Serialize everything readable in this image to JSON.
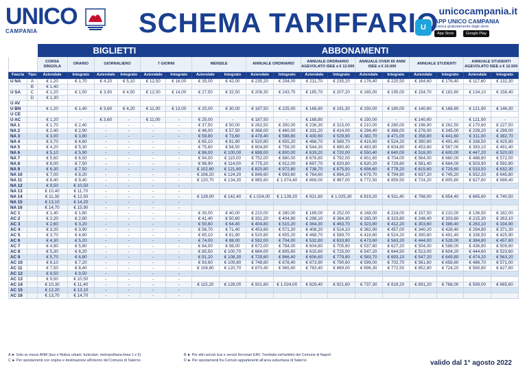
{
  "header": {
    "brand": "UNICO",
    "brand_sub": "CAMPANIA",
    "title": "SCHEMA TARIFFARIO",
    "site": "unicocampania.it",
    "app_title": "APP UNICO CAMPANIA",
    "app_sub": "scarica gratuitamente dagli store",
    "store1": "App Store",
    "store2": "Google Play"
  },
  "groups": {
    "biglietti": "BIGLIETTI",
    "abbonamenti": "ABBONAMENTI"
  },
  "columns": {
    "fascia": "Fascia",
    "tipo": "Tipo",
    "corsa_singola": "CORSA SINGOLA",
    "orario": "ORARIO",
    "giornaliero": "GIORNALIERO",
    "sette_giorni": "7 GIORNI",
    "mensile": "MENSILE",
    "annuale_ordinario": "ANNUALE ORDINARIO",
    "annuale_agevolato": "ANNUALE ORDINARIO AGEVOLATO ISEE ≤ € 12.500",
    "annuale_over65": "ANNUALE OVER 65 ANNI ISEE ≤ € 10.000",
    "annuale_studenti": "ANNUALE STUDENTI",
    "annuale_studenti_agev": "ANNUALE STUDENTI AGEVOLATO ISEE ≤ € 12.500"
  },
  "subheaders": {
    "aziendale": "Aziendale",
    "integrato": "Integrato"
  },
  "rows": [
    [
      "U NA",
      "A",
      "€ 1,20",
      "€ 1,70",
      "€ 4,20",
      "€ 5,10",
      "€ 12,50",
      "€ 16,00",
      "€ 35,00",
      "€ 42,00",
      "€ 235,20",
      "€ 294,00",
      "€ 211,70",
      "€ 235,20",
      "€ 176,40",
      "€ 220,50",
      "€ 164,60",
      "€ 176,40",
      "€ 117,60",
      "€ 132,30"
    ],
    [
      "",
      "B",
      "€ 1,40",
      "",
      "",
      "",
      "",
      "",
      "",
      "",
      "",
      "",
      "",
      "",
      "",
      "",
      "",
      "",
      "",
      ""
    ],
    [
      "U SA",
      "C",
      "€ 1,20",
      "€ 1,50",
      "€ 3,90",
      "€ 4,50",
      "€ 12,00",
      "€ 14,00",
      "€ 27,50",
      "€ 32,50",
      "€ 206,30",
      "€ 243,75",
      "€ 185,70",
      "€ 207,20",
      "€ 165,00",
      "€ 195,00",
      "€ 154,70",
      "€ 182,80",
      "€ 134,10",
      "€ 158,40"
    ],
    [
      "",
      "D",
      "€ 1,30",
      "",
      "",
      "",
      "",
      "",
      "",
      "",
      "",
      "",
      "",
      "",
      "",
      "",
      "",
      "",
      "",
      ""
    ],
    [
      "U AV",
      "",
      "",
      "",
      "",
      "",
      "",
      "",
      "",
      "",
      "",
      "",
      "",
      "",
      "",
      "",
      "",
      "",
      "",
      ""
    ],
    [
      "U BN",
      "",
      "€ 1,20",
      "€ 1,40",
      "€ 3,60",
      "€ 4,20",
      "€ 11,00",
      "€ 13,00",
      "€ 25,00",
      "€ 30,00",
      "€ 187,50",
      "€ 225,00",
      "€ 168,80",
      "€ 191,30",
      "€ 150,00",
      "€ 180,00",
      "€ 140,60",
      "€ 168,80",
      "€ 121,90",
      "€ 146,30"
    ],
    [
      "U CE",
      "",
      "",
      "",
      "",
      "",
      "",
      "",
      "",
      "",
      "",
      "",
      "",
      "",
      "",
      "",
      "",
      "",
      "",
      ""
    ],
    [
      "U AC",
      "",
      "€ 1,20",
      "-",
      "€ 3,60",
      "-",
      "€ 11,00",
      "-",
      "€ 25,00",
      "-",
      "€ 187,50",
      "-",
      "€ 168,80",
      "-",
      "€ 150,00",
      "-",
      "€ 140,60",
      "-",
      "€ 121,90",
      "-"
    ],
    [
      "NA 1",
      "",
      "€ 1,70",
      "€ 2,40",
      "-",
      "-",
      "-",
      "-",
      "€ 37,50",
      "€ 50,00",
      "€ 262,50",
      "€ 350,00",
      "€ 236,30",
      "€ 315,00",
      "€ 210,00",
      "€ 280,00",
      "€ 196,90",
      "€ 262,50",
      "€ 170,60",
      "€ 227,50"
    ],
    [
      "NA 2",
      "",
      "€ 2,40",
      "€ 2,90",
      "-",
      "-",
      "-",
      "-",
      "€ 46,00",
      "€ 57,50",
      "€ 368,00",
      "€ 460,00",
      "€ 331,20",
      "€ 414,00",
      "€ 294,40",
      "€ 368,00",
      "€ 276,00",
      "€ 345,00",
      "€ 239,20",
      "€ 299,00"
    ],
    [
      "NA 3",
      "",
      "€ 3,00",
      "€ 3,80",
      "-",
      "-",
      "-",
      "-",
      "€ 59,80",
      "€ 73,60",
      "€ 478,40",
      "€ 588,80",
      "€ 430,60",
      "€ 529,90",
      "€ 382,70",
      "€ 471,00",
      "€ 358,80",
      "€ 441,60",
      "€ 311,00",
      "€ 382,70"
    ],
    [
      "NA 4",
      "",
      "€ 3,70",
      "€ 4,60",
      "-",
      "-",
      "-",
      "-",
      "€ 65,10",
      "€ 81,90",
      "€ 520,80",
      "€ 655,20",
      "€ 468,70",
      "€ 589,70",
      "€ 416,60",
      "€ 524,20",
      "€ 390,60",
      "€ 491,40",
      "€ 338,50",
      "€ 425,90"
    ],
    [
      "NA 5",
      "",
      "€ 4,20",
      "€ 5,30",
      "-",
      "-",
      "-",
      "-",
      "€ 75,60",
      "€ 94,50",
      "€ 604,80",
      "€ 756,00",
      "€ 544,30",
      "€ 680,40",
      "€ 483,80",
      "€ 604,80",
      "€ 453,60",
      "€ 567,00",
      "€ 393,10",
      "€ 491,40"
    ],
    [
      "NA 6",
      "",
      "€ 5,10",
      "€ 5,90",
      "-",
      "-",
      "-",
      "-",
      "€ 86,00",
      "€ 100,00",
      "€ 688,00",
      "€ 800,00",
      "€ 619,20",
      "€ 720,00",
      "€ 550,40",
      "€ 640,00",
      "€ 516,00",
      "€ 600,00",
      "€ 447,20",
      "€ 520,00"
    ],
    [
      "NA 7",
      "",
      "€ 5,60",
      "€ 6,50",
      "-",
      "-",
      "-",
      "-",
      "€ 94,00",
      "€ 110,00",
      "€ 752,00",
      "€ 880,00",
      "€ 676,80",
      "€ 792,00",
      "€ 601,60",
      "€ 704,00",
      "€ 564,00",
      "€ 660,00",
      "€ 488,80",
      "€ 572,00"
    ],
    [
      "NA 8",
      "",
      "€ 6,00",
      "€ 7,50",
      "-",
      "-",
      "-",
      "-",
      "€ 96,90",
      "€ 114,00",
      "€ 775,20",
      "€ 912,00",
      "€ 697,70",
      "€ 820,80",
      "€ 620,20",
      "€ 729,60",
      "€ 581,40",
      "€ 684,00",
      "€ 503,90",
      "€ 592,80"
    ],
    [
      "NA 9",
      "",
      "€ 6,30",
      "€ 7,50",
      "-",
      "-",
      "-",
      "-",
      "€ 102,60",
      "€ 121,60",
      "€ 820,80",
      "€ 972,80",
      "€ 738,70",
      "€ 875,50",
      "€ 656,60",
      "€ 778,20",
      "€ 615,60",
      "€ 729,60",
      "€ 533,50",
      "€ 632,30"
    ],
    [
      "NA 10",
      "",
      "€ 7,00",
      "€ 8,20",
      "-",
      "-",
      "-",
      "-",
      "€ 106,20",
      "€ 124,20",
      "€ 849,60",
      "€ 993,60",
      "€ 764,60",
      "€ 894,20",
      "€ 679,70",
      "€ 794,90",
      "€ 637,20",
      "€ 745,20",
      "€ 552,20",
      "€ 645,80"
    ],
    [
      "NA 11",
      "",
      "€ 8,40",
      "€ 9,40",
      "-",
      "-",
      "-",
      "-",
      "€ 120,70",
      "€ 134,30",
      "€ 965,60",
      "€ 1.074,40",
      "€ 869,00",
      "€ 967,00",
      "€ 772,50",
      "€ 859,50",
      "€ 724,20",
      "€ 805,80",
      "€ 627,60",
      "€ 698,40"
    ],
    [
      "NA 12",
      "",
      "€ 9,50",
      "€ 10,50",
      "-",
      "-",
      "-",
      "-",
      "",
      "",
      "",
      "",
      "",
      "",
      "",
      "",
      "",
      "",
      "",
      ""
    ],
    [
      "NA 13",
      "",
      "€ 10,40",
      "€ 11,70",
      "-",
      "-",
      "-",
      "-",
      "",
      "",
      "",
      "",
      "",
      "",
      "",
      "",
      "",
      "",
      "",
      ""
    ],
    [
      "NA 14",
      "",
      "€ 11,30",
      "€ 12,50",
      "-",
      "-",
      "-",
      "-",
      "€ 128,00",
      "€ 142,40",
      "€ 1.024,00",
      "€ 1.139,20",
      "€ 921,60",
      "€ 1.025,30",
      "€ 819,20",
      "€ 911,40",
      "€ 768,00",
      "€ 854,40",
      "€ 665,60",
      "€ 740,50"
    ],
    [
      "NA 15",
      "",
      "€ 13,10",
      "€ 14,20",
      "-",
      "-",
      "-",
      "-",
      "",
      "",
      "",
      "",
      "",
      "",
      "",
      "",
      "",
      "",
      "",
      ""
    ],
    [
      "NA 16",
      "",
      "€ 14,70",
      "€ 15,90",
      "-",
      "-",
      "-",
      "-",
      "",
      "",
      "",
      "",
      "",
      "",
      "",
      "",
      "",
      "",
      "",
      ""
    ],
    [
      "AC 1",
      "",
      "€ 1,40",
      "€ 1,80",
      "-",
      "-",
      "-",
      "-",
      "€ 30,00",
      "€ 40,00",
      "€ 210,00",
      "€ 280,00",
      "€ 189,00",
      "€ 252,00",
      "€ 168,00",
      "€ 224,00",
      "€ 157,50",
      "€ 210,00",
      "€ 136,50",
      "€ 182,00"
    ],
    [
      "AC 2",
      "",
      "€ 2,20",
      "€ 2,60",
      "-",
      "-",
      "-",
      "-",
      "€ 41,40",
      "€ 50,60",
      "€ 331,20",
      "€ 404,80",
      "€ 298,10",
      "€ 364,30",
      "€ 265,00",
      "€ 323,80",
      "€ 248,40",
      "€ 303,60",
      "€ 215,30",
      "€ 263,10"
    ],
    [
      "AC 3",
      "",
      "€ 2,60",
      "€ 3,20",
      "-",
      "-",
      "-",
      "-",
      "€ 50,60",
      "€ 64,40",
      "€ 404,80",
      "€ 515,20",
      "€ 364,30",
      "€ 463,70",
      "€ 323,80",
      "€ 412,20",
      "€ 303,60",
      "€ 386,40",
      "€ 263,10",
      "€ 334,90"
    ],
    [
      "AC 4",
      "",
      "€ 3,20",
      "€ 3,90",
      "-",
      "-",
      "-",
      "-",
      "€ 56,70",
      "€ 71,40",
      "€ 453,60",
      "€ 571,20",
      "€ 408,20",
      "€ 514,10",
      "€ 362,90",
      "€ 457,00",
      "€ 340,20",
      "€ 428,40",
      "€ 294,80",
      "€ 371,30"
    ],
    [
      "AC 5",
      "",
      "€ 3,70",
      "€ 4,60",
      "-",
      "-",
      "-",
      "-",
      "€ 65,10",
      "€ 81,90",
      "€ 520,80",
      "€ 655,20",
      "€ 468,70",
      "€ 589,70",
      "€ 416,60",
      "€ 524,20",
      "€ 390,60",
      "€ 491,40",
      "€ 338,50",
      "€ 425,90"
    ],
    [
      "AC 6",
      "",
      "€ 4,30",
      "€ 5,20",
      "-",
      "-",
      "-",
      "-",
      "€ 74,00",
      "€ 88,00",
      "€ 592,00",
      "€ 704,00",
      "€ 532,80",
      "€ 633,60",
      "€ 473,60",
      "€ 563,20",
      "€ 444,00",
      "€ 528,00",
      "€ 384,80",
      "€ 457,60"
    ],
    [
      "AC 7",
      "",
      "€ 4,90",
      "€ 5,80",
      "-",
      "-",
      "-",
      "-",
      "€ 84,00",
      "€ 98,00",
      "€ 672,00",
      "€ 784,00",
      "€ 604,80",
      "€ 705,60",
      "€ 537,60",
      "€ 627,20",
      "€ 504,00",
      "€ 588,00",
      "€ 436,80",
      "€ 509,60"
    ],
    [
      "AC 8",
      "",
      "€ 5,30",
      "€ 6,20",
      "-",
      "-",
      "-",
      "-",
      "€ 85,50",
      "€ 100,70",
      "€ 684,00",
      "€ 805,60",
      "€ 615,60",
      "€ 725,00",
      "€ 547,20",
      "€ 644,50",
      "€ 513,00",
      "€ 604,20",
      "€ 444,60",
      "€ 523,60"
    ],
    [
      "AC 9",
      "",
      "€ 5,70",
      "€ 6,80",
      "-",
      "-",
      "-",
      "-",
      "€ 91,20",
      "€ 108,30",
      "€ 729,60",
      "€ 866,40",
      "€ 656,60",
      "€ 779,80",
      "€ 583,70",
      "€ 693,10",
      "€ 547,20",
      "€ 649,80",
      "€ 474,20",
      "€ 563,20"
    ],
    [
      "AC 10",
      "",
      "€ 6,10",
      "€ 7,20",
      "-",
      "-",
      "-",
      "-",
      "€ 93,60",
      "€ 109,80",
      "€ 748,80",
      "€ 878,40",
      "€ 673,90",
      "€ 790,60",
      "€ 599,00",
      "€ 702,70",
      "€ 561,60",
      "€ 658,80",
      "€ 486,70",
      "€ 571,00"
    ],
    [
      "AC 11",
      "",
      "€ 7,50",
      "€ 8,40",
      "-",
      "-",
      "-",
      "-",
      "€ 108,80",
      "€ 120,70",
      "€ 870,40",
      "€ 965,60",
      "€ 783,40",
      "€ 869,00",
      "€ 696,30",
      "€ 772,50",
      "€ 652,80",
      "€ 724,20",
      "€ 565,80",
      "€ 627,60"
    ],
    [
      "AC 12",
      "",
      "€ 8,50",
      "€ 9,50",
      "-",
      "-",
      "-",
      "-",
      "",
      "",
      "",
      "",
      "",
      "",
      "",
      "",
      "",
      "",
      "",
      ""
    ],
    [
      "AC 13",
      "",
      "€ 9,50",
      "€ 10,50",
      "-",
      "-",
      "-",
      "-",
      "",
      "",
      "",
      "",
      "",
      "",
      "",
      "",
      "",
      "",
      "",
      ""
    ],
    [
      "AC 14",
      "",
      "€ 10,30",
      "€ 11,40",
      "-",
      "-",
      "-",
      "-",
      "€ 115,20",
      "€ 128,00",
      "€ 921,60",
      "€ 1.024,00",
      "€ 829,40",
      "€ 921,60",
      "€ 737,30",
      "€ 819,20",
      "€ 691,20",
      "€ 768,00",
      "€ 599,00",
      "€ 665,60"
    ],
    [
      "AC 15",
      "",
      "€ 12,20",
      "€ 13,10",
      "-",
      "-",
      "-",
      "-",
      "",
      "",
      "",
      "",
      "",
      "",
      "",
      "",
      "",
      "",
      "",
      ""
    ],
    [
      "AC 16",
      "",
      "€ 13,70",
      "€ 14,70",
      "-",
      "-",
      "-",
      "-",
      "",
      "",
      "",
      "",
      "",
      "",
      "",
      "",
      "",
      "",
      "",
      ""
    ]
  ],
  "notes": {
    "a": "A ► Solo su mezzi ANM (bus e filobus urbani, funicolari, metropolitana linea 1 e 6)",
    "b": "B ► Per altri servizi bus e servizi ferroviari EAV, Trenitalia nell'ambito del Comune di Napoli",
    "c": "C ► Per spostamenti con origine e destinazione all'interno del Comune di Salerno",
    "d": "D ► Per spostamenti fra Comuni appartenenti all'area suburbana di Salerno"
  },
  "validity": "valido dal 1° agosto 2022"
}
